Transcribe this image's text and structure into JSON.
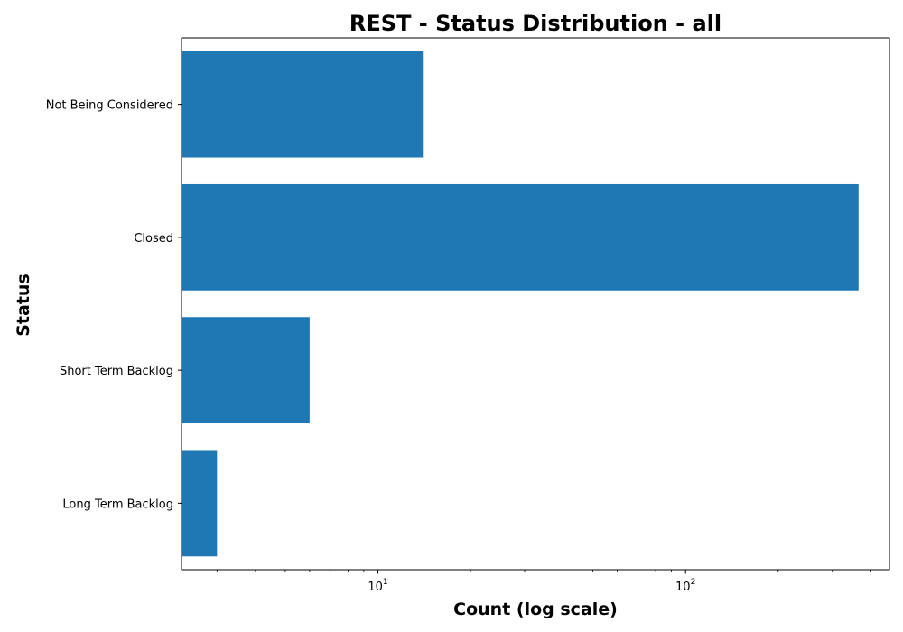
{
  "chart_data": {
    "type": "bar",
    "orientation": "horizontal",
    "title": "REST - Status Distribution - all",
    "xlabel": "Count (log scale)",
    "ylabel": "Status",
    "x_scale": "log",
    "xlim": [
      2.3,
      460
    ],
    "grid": false,
    "categories": [
      "Not Being Considered",
      "Closed",
      "Short Term Backlog",
      "Long Term Backlog"
    ],
    "values": [
      14,
      365,
      6,
      3
    ],
    "x_tick_labels": [
      {
        "value": 10,
        "base": "10",
        "exponent": "1"
      },
      {
        "value": 100,
        "base": "10",
        "exponent": "2"
      }
    ],
    "colors": {
      "bar": "#1f77b4",
      "axis": "#000000",
      "background": "#ffffff"
    }
  }
}
